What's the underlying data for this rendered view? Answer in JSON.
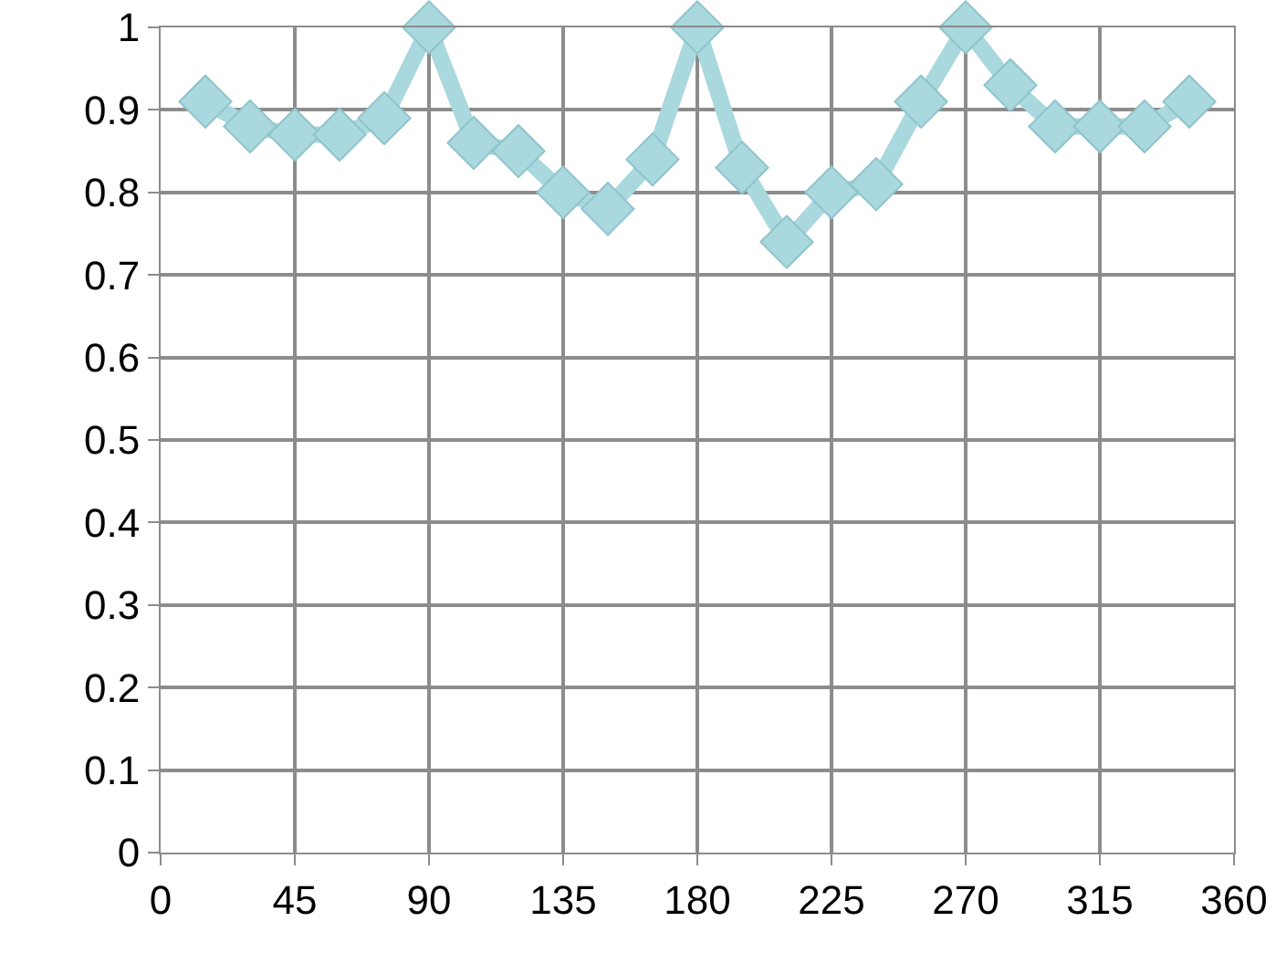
{
  "chart_data": {
    "type": "line",
    "x": [
      15,
      30,
      45,
      60,
      75,
      90,
      105,
      120,
      135,
      150,
      165,
      180,
      195,
      210,
      225,
      240,
      255,
      270,
      285,
      300,
      315,
      330,
      345
    ],
    "series": [
      {
        "color": "#a9d8de",
        "values": [
          0.91,
          0.88,
          0.87,
          0.87,
          0.89,
          1,
          0.86,
          0.85,
          0.8,
          0.78,
          0.84,
          1,
          0.83,
          0.74,
          0.8,
          0.81,
          0.91,
          1,
          0.93,
          0.88,
          0.88,
          0.88,
          0.91
        ]
      }
    ],
    "xlim": [
      0,
      360
    ],
    "xticks": [
      0,
      45,
      90,
      135,
      180,
      225,
      270,
      315,
      360
    ],
    "ylim": [
      0,
      1
    ],
    "yticks": [
      0,
      0.1,
      0.2,
      0.3,
      0.4,
      0.5,
      0.6,
      0.7,
      0.8,
      0.9,
      1
    ],
    "grid": true,
    "marker": "diamond",
    "line_style": "solid"
  }
}
